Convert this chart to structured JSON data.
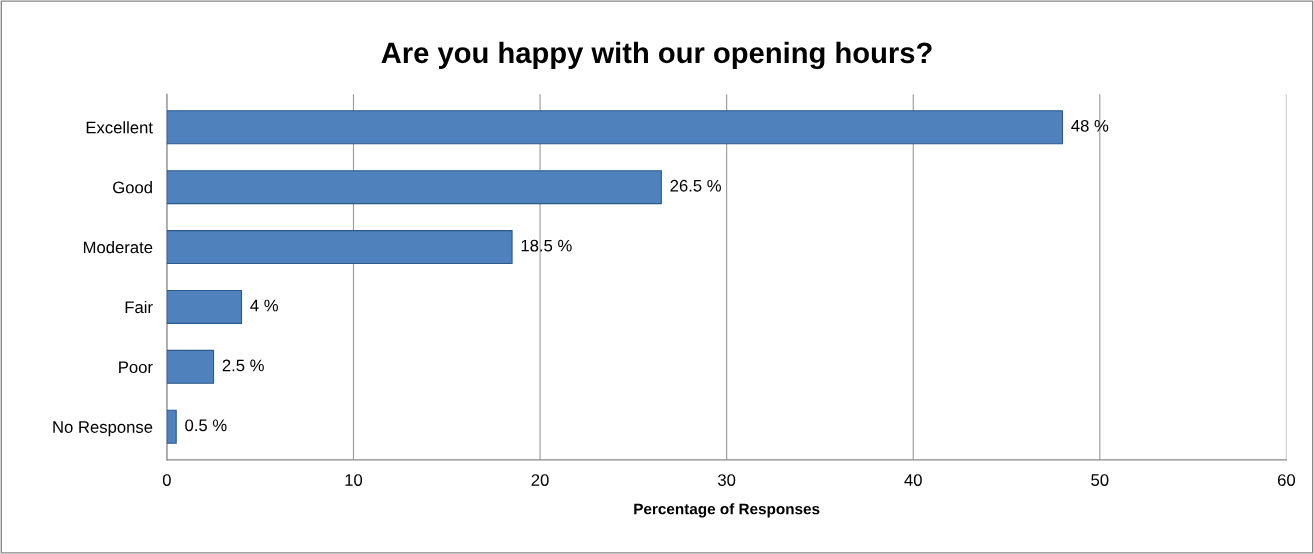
{
  "chart_data": {
    "type": "bar",
    "orientation": "horizontal",
    "title": "Are you happy with our opening hours?",
    "xlabel": "Percentage of Responses",
    "categories": [
      "Excellent",
      "Good",
      "Moderate",
      "Fair",
      "Poor",
      "No Response"
    ],
    "values": [
      48,
      26.5,
      18.5,
      4,
      2.5,
      0.5
    ],
    "value_labels": [
      "48 %",
      "26.5 %",
      "18.5 %",
      "4 %",
      "2.5 %",
      "0.5 %"
    ],
    "color": "#4f81bd",
    "xlim": [
      0,
      60
    ],
    "xticks": [
      0,
      10,
      20,
      30,
      40,
      50,
      60
    ],
    "grid": "x"
  }
}
